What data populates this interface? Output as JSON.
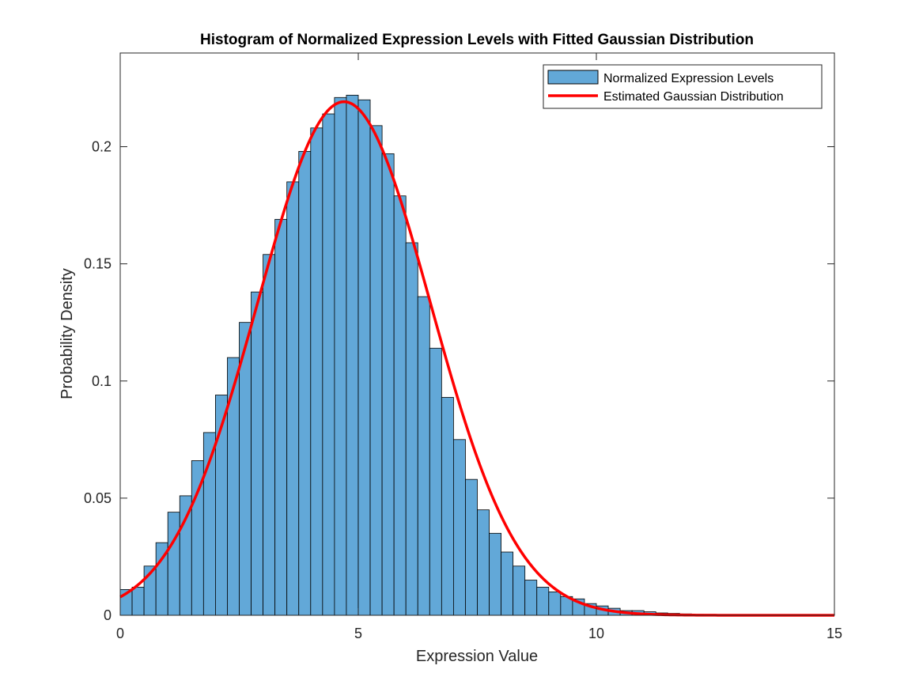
{
  "chart_data": {
    "type": "bar",
    "title": "Histogram of Normalized Expression Levels with Fitted Gaussian Distribution",
    "xlabel": "Expression Value",
    "ylabel": "Probability Density",
    "xlim": [
      0,
      15
    ],
    "ylim": [
      0,
      0.24
    ],
    "xticks": [
      0,
      5,
      10,
      15
    ],
    "xtick_labels": [
      "0",
      "5",
      "10",
      "15"
    ],
    "yticks": [
      0,
      0.05,
      0.1,
      0.15,
      0.2
    ],
    "ytick_labels": [
      "0",
      "0.05",
      "0.1",
      "0.15",
      "0.2"
    ],
    "grid": false,
    "legend_position": "top-right",
    "bin_width": 0.25,
    "series": [
      {
        "name": "Normalized Expression Levels",
        "kind": "histogram",
        "color": "#62a8d8",
        "edge_color": "#000000",
        "bin_edges_start": 0,
        "values": [
          0.011,
          0.012,
          0.021,
          0.031,
          0.044,
          0.051,
          0.066,
          0.078,
          0.094,
          0.11,
          0.125,
          0.138,
          0.154,
          0.169,
          0.185,
          0.198,
          0.208,
          0.214,
          0.221,
          0.222,
          0.22,
          0.209,
          0.197,
          0.179,
          0.159,
          0.136,
          0.114,
          0.093,
          0.075,
          0.058,
          0.045,
          0.035,
          0.027,
          0.021,
          0.015,
          0.012,
          0.01,
          0.008,
          0.007,
          0.005,
          0.004,
          0.003,
          0.002,
          0.002,
          0.0015,
          0.001,
          0.0008,
          0.0006,
          0.0004,
          0.0003,
          0.0002,
          0.00015,
          0.0001,
          0.0001,
          5e-05,
          5e-05,
          3e-05,
          2e-05,
          1e-05,
          1e-05
        ]
      },
      {
        "name": "Estimated Gaussian Distribution",
        "kind": "line",
        "color": "#ff0000",
        "mean": 4.7,
        "std": 1.82,
        "x_range": [
          0,
          15
        ]
      }
    ]
  }
}
